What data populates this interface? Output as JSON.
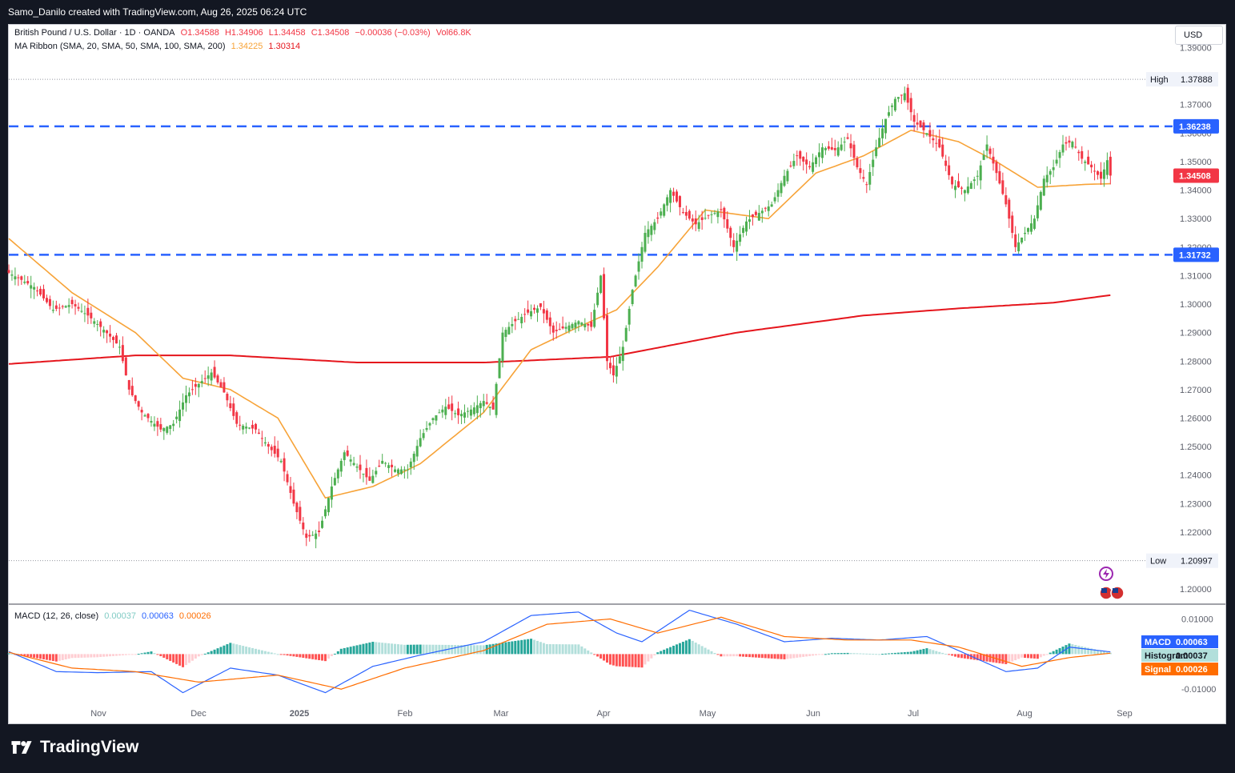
{
  "header": {
    "credit": "Samo_Danilo created with TradingView.com, Aug 26, 2025 06:24 UTC"
  },
  "footer": {
    "brand": "TradingView"
  },
  "currency_button": "USD",
  "legend": {
    "symbol": "British Pound / U.S. Dollar · 1D · OANDA",
    "open": "O1.34588",
    "high": "H1.34906",
    "low": "L1.34458",
    "close": "C1.34508",
    "change": "−0.00036 (−0.03%)",
    "volume": "Vol66.8K",
    "ma_label": "MA Ribbon (SMA, 20, SMA, 50, SMA, 100, SMA, 200)",
    "ma20_value": "1.34225",
    "ma200_value": "1.30314",
    "macd_label": "MACD (12, 26, close)",
    "macd_hist": "0.00037",
    "macd_macd": "0.00063",
    "macd_signal": "0.00026"
  },
  "colors": {
    "up": "#4caf50",
    "down": "#f23645",
    "ma20": "#f7a338",
    "ma200": "#e5151c",
    "level": "#2962ff",
    "macd": "#2962ff",
    "signal": "#ff6d00",
    "hist_up_strong": "#26a69a",
    "hist_up_weak": "#b2dfdb",
    "hist_down_strong": "#ff5252",
    "hist_down_weak": "#ffcdd2",
    "background": "#131722"
  },
  "chart_data": {
    "type": "candlestick",
    "title": "British Pound / U.S. Dollar",
    "interval": "1D",
    "source": "OANDA",
    "ylim": [
      1.195,
      1.398
    ],
    "price_ticks": [
      "1.20000",
      "1.21000",
      "1.22000",
      "1.23000",
      "1.24000",
      "1.25000",
      "1.26000",
      "1.27000",
      "1.28000",
      "1.29000",
      "1.30000",
      "1.31000",
      "1.32000",
      "1.33000",
      "1.34000",
      "1.35000",
      "1.36000",
      "1.37000",
      "1.38000",
      "1.39000"
    ],
    "x_labels": [
      "Nov",
      "Dec",
      "2025",
      "Feb",
      "Mar",
      "Apr",
      "May",
      "Jun",
      "Jul",
      "Aug",
      "Sep"
    ],
    "levels": [
      {
        "name": "resistance",
        "value": 1.36238,
        "label": "1.36238"
      },
      {
        "name": "support",
        "value": 1.31732,
        "label": "1.31732"
      }
    ],
    "high_marker": {
      "label": "High",
      "value": 1.37888,
      "text": "1.37888"
    },
    "low_marker": {
      "label": "Low",
      "value": 1.20997,
      "text": "1.20997"
    },
    "last_price": {
      "value": 1.34508,
      "text": "1.34508"
    },
    "anchors": [
      [
        0,
        1.311
      ],
      [
        8,
        1.306
      ],
      [
        14,
        1.298
      ],
      [
        20,
        1.3
      ],
      [
        25,
        1.296
      ],
      [
        30,
        1.291
      ],
      [
        35,
        1.285
      ],
      [
        38,
        1.27
      ],
      [
        42,
        1.262
      ],
      [
        48,
        1.256
      ],
      [
        52,
        1.258
      ],
      [
        56,
        1.268
      ],
      [
        60,
        1.272
      ],
      [
        64,
        1.276
      ],
      [
        68,
        1.269
      ],
      [
        72,
        1.258
      ],
      [
        78,
        1.256
      ],
      [
        82,
        1.25
      ],
      [
        86,
        1.245
      ],
      [
        90,
        1.23
      ],
      [
        94,
        1.218
      ],
      [
        98,
        1.22
      ],
      [
        102,
        1.236
      ],
      [
        106,
        1.248
      ],
      [
        110,
        1.243
      ],
      [
        114,
        1.238
      ],
      [
        118,
        1.245
      ],
      [
        122,
        1.242
      ],
      [
        126,
        1.242
      ],
      [
        130,
        1.253
      ],
      [
        134,
        1.26
      ],
      [
        138,
        1.264
      ],
      [
        142,
        1.261
      ],
      [
        146,
        1.263
      ],
      [
        150,
        1.266
      ],
      [
        153,
        1.263
      ],
      [
        156,
        1.29
      ],
      [
        160,
        1.294
      ],
      [
        164,
        1.297
      ],
      [
        168,
        1.299
      ],
      [
        172,
        1.29
      ],
      [
        176,
        1.292
      ],
      [
        180,
        1.294
      ],
      [
        184,
        1.292
      ],
      [
        187,
        1.31
      ],
      [
        189,
        1.28
      ],
      [
        191,
        1.275
      ],
      [
        194,
        1.285
      ],
      [
        197,
        1.305
      ],
      [
        201,
        1.325
      ],
      [
        205,
        1.33
      ],
      [
        209,
        1.34
      ],
      [
        213,
        1.332
      ],
      [
        217,
        1.328
      ],
      [
        221,
        1.331
      ],
      [
        225,
        1.333
      ],
      [
        229,
        1.32
      ],
      [
        233,
        1.329
      ],
      [
        237,
        1.332
      ],
      [
        241,
        1.335
      ],
      [
        245,
        1.345
      ],
      [
        249,
        1.352
      ],
      [
        253,
        1.348
      ],
      [
        257,
        1.355
      ],
      [
        261,
        1.354
      ],
      [
        265,
        1.358
      ],
      [
        268,
        1.348
      ],
      [
        271,
        1.342
      ],
      [
        274,
        1.355
      ],
      [
        277,
        1.365
      ],
      [
        280,
        1.372
      ],
      [
        283,
        1.374
      ],
      [
        286,
        1.364
      ],
      [
        290,
        1.36
      ],
      [
        294,
        1.355
      ],
      [
        298,
        1.342
      ],
      [
        302,
        1.34
      ],
      [
        306,
        1.345
      ],
      [
        309,
        1.356
      ],
      [
        312,
        1.346
      ],
      [
        315,
        1.335
      ],
      [
        318,
        1.32
      ],
      [
        321,
        1.325
      ],
      [
        324,
        1.33
      ],
      [
        327,
        1.344
      ],
      [
        330,
        1.348
      ],
      [
        333,
        1.356
      ],
      [
        336,
        1.357
      ],
      [
        339,
        1.351
      ],
      [
        342,
        1.348
      ],
      [
        345,
        1.344
      ],
      [
        347,
        1.3505
      ],
      [
        348,
        1.3451
      ]
    ],
    "ma20_levels": [
      [
        0,
        1.323
      ],
      [
        20,
        1.304
      ],
      [
        40,
        1.29
      ],
      [
        55,
        1.274
      ],
      [
        70,
        1.27
      ],
      [
        85,
        1.26
      ],
      [
        100,
        1.232
      ],
      [
        115,
        1.236
      ],
      [
        130,
        1.244
      ],
      [
        150,
        1.262
      ],
      [
        165,
        1.284
      ],
      [
        180,
        1.292
      ],
      [
        192,
        1.298
      ],
      [
        205,
        1.313
      ],
      [
        220,
        1.333
      ],
      [
        240,
        1.33
      ],
      [
        255,
        1.346
      ],
      [
        270,
        1.352
      ],
      [
        285,
        1.361
      ],
      [
        300,
        1.357
      ],
      [
        312,
        1.35
      ],
      [
        325,
        1.341
      ],
      [
        340,
        1.342
      ],
      [
        348,
        1.34225
      ]
    ],
    "ma200_levels": [
      [
        0,
        1.279
      ],
      [
        40,
        1.282
      ],
      [
        70,
        1.282
      ],
      [
        110,
        1.2795
      ],
      [
        150,
        1.2795
      ],
      [
        190,
        1.2815
      ],
      [
        230,
        1.29
      ],
      [
        270,
        1.296
      ],
      [
        300,
        1.2985
      ],
      [
        330,
        1.3005
      ],
      [
        348,
        1.30314
      ]
    ],
    "macd_ylim": [
      -0.0136,
      0.014
    ],
    "macd_ticks": [
      "0.01000",
      "-0.01000"
    ],
    "macd_series": {
      "macd_name": "MACD",
      "macd_value": "0.00063",
      "hist_name": "Histogram",
      "hist_value": "0.00037",
      "signal_name": "Signal",
      "signal_value": "0.00026",
      "macd_levels": [
        [
          0,
          0.0007
        ],
        [
          15,
          -0.005
        ],
        [
          28,
          -0.0053
        ],
        [
          45,
          -0.005
        ],
        [
          55,
          -0.011
        ],
        [
          70,
          -0.004
        ],
        [
          85,
          -0.006
        ],
        [
          100,
          -0.011
        ],
        [
          115,
          -0.0035
        ],
        [
          130,
          -0.0003
        ],
        [
          150,
          0.0035
        ],
        [
          165,
          0.011
        ],
        [
          180,
          0.012
        ],
        [
          192,
          0.006
        ],
        [
          200,
          0.0035
        ],
        [
          215,
          0.0125
        ],
        [
          230,
          0.0085
        ],
        [
          245,
          0.0035
        ],
        [
          260,
          0.0045
        ],
        [
          275,
          0.004
        ],
        [
          290,
          0.005
        ],
        [
          305,
          -0.001
        ],
        [
          315,
          -0.005
        ],
        [
          325,
          -0.004
        ],
        [
          335,
          0.002
        ],
        [
          348,
          0.00063
        ]
      ],
      "signal_levels": [
        [
          0,
          0.0005
        ],
        [
          20,
          -0.004
        ],
        [
          40,
          -0.005
        ],
        [
          60,
          -0.008
        ],
        [
          85,
          -0.006
        ],
        [
          105,
          -0.01
        ],
        [
          125,
          -0.004
        ],
        [
          150,
          0.001
        ],
        [
          170,
          0.0085
        ],
        [
          190,
          0.01
        ],
        [
          205,
          0.006
        ],
        [
          225,
          0.0105
        ],
        [
          245,
          0.005
        ],
        [
          265,
          0.004
        ],
        [
          285,
          0.004
        ],
        [
          300,
          0.002
        ],
        [
          320,
          -0.0035
        ],
        [
          335,
          -0.001
        ],
        [
          348,
          0.00026
        ]
      ]
    }
  }
}
